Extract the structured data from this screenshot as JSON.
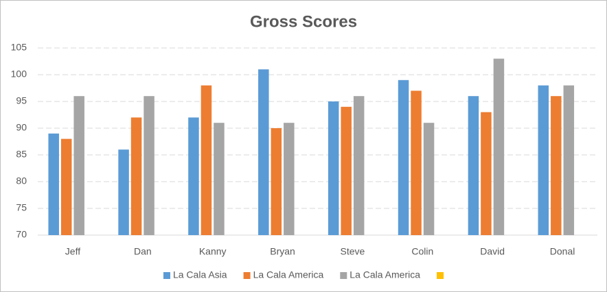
{
  "chart_data": {
    "type": "bar",
    "title": "Gross Scores",
    "categories": [
      "Jeff",
      "Dan",
      "Kanny",
      "Bryan",
      "Steve",
      "Colin",
      "David",
      "Donal"
    ],
    "series": [
      {
        "name": "La Cala Asia",
        "color": "#5b9bd5",
        "values": [
          89,
          86,
          92,
          101,
          95,
          99,
          96,
          98
        ]
      },
      {
        "name": "La Cala America",
        "color": "#ed7d31",
        "values": [
          88,
          92,
          98,
          90,
          94,
          97,
          93,
          96
        ]
      },
      {
        "name": "La Cala America",
        "color": "#a5a5a5",
        "values": [
          96,
          96,
          91,
          91,
          96,
          91,
          103,
          98
        ]
      },
      {
        "name": null,
        "color": "#ffc000",
        "values": [
          null,
          null,
          null,
          null,
          null,
          null,
          null,
          null
        ]
      }
    ],
    "ylim": [
      70,
      105
    ],
    "yticks": [
      70,
      75,
      80,
      85,
      90,
      95,
      100,
      105
    ],
    "grid": true,
    "legend": "bottom"
  }
}
